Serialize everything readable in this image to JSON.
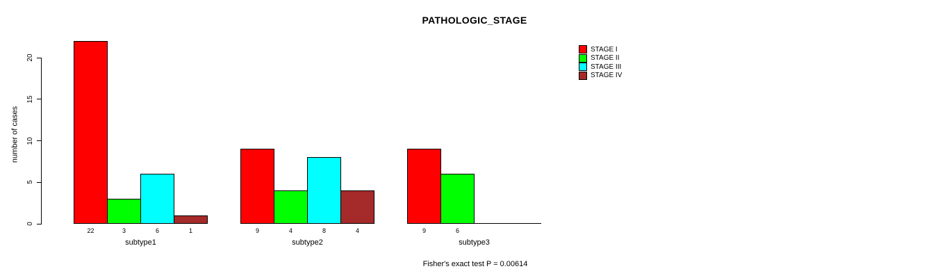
{
  "title": "PATHOLOGIC_STAGE",
  "ylabel": "number of cases",
  "footnote": "Fisher's exact test P = 0.00614",
  "legend": {
    "entries": [
      "STAGE I",
      "STAGE II",
      "STAGE III",
      "STAGE IV"
    ]
  },
  "chart_data": {
    "type": "bar",
    "title": "PATHOLOGIC_STAGE",
    "categories": [
      "subtype1",
      "subtype2",
      "subtype3"
    ],
    "series": [
      {
        "name": "STAGE I",
        "color": "#FF0000",
        "values": [
          22,
          9,
          9
        ]
      },
      {
        "name": "STAGE II",
        "color": "#00FF00",
        "values": [
          3,
          4,
          6
        ]
      },
      {
        "name": "STAGE III",
        "color": "#00FFFF",
        "values": [
          6,
          8,
          0
        ]
      },
      {
        "name": "STAGE IV",
        "color": "#A52A2A",
        "values": [
          1,
          4,
          0
        ]
      }
    ],
    "xlabel": "",
    "ylabel": "number of cases",
    "ylim": [
      0,
      22
    ],
    "yticks": [
      0,
      5,
      10,
      15,
      20
    ],
    "grid": false,
    "legend_position": "top-right",
    "bar_value_labels": [
      [
        "22",
        "3",
        "6",
        "1"
      ],
      [
        "9",
        "4",
        "8",
        "4"
      ],
      [
        "9",
        "6",
        "",
        ""
      ]
    ],
    "footnote": "Fisher's exact test P = 0.00614"
  }
}
